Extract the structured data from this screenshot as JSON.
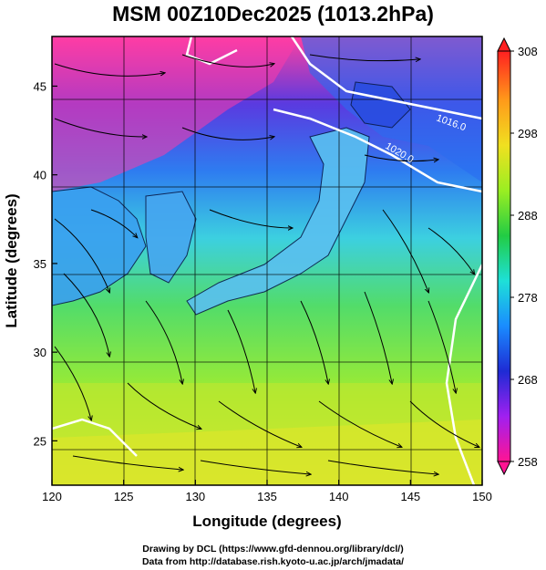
{
  "title": "MSM 00Z10Dec2025 (1013.2hPa)",
  "map": {
    "x_label": "Longitude (degrees)",
    "y_label": "Latitude  (degrees)",
    "lon_range": [
      120,
      150
    ],
    "lat_range": [
      22.5,
      47.8
    ],
    "x_ticks": [
      "120",
      "125",
      "130",
      "135",
      "140",
      "145",
      "150"
    ],
    "y_ticks": [
      "25",
      "30",
      "35",
      "40",
      "45"
    ],
    "grid": true,
    "isobar_labels": [
      "1016.0",
      "1020.0"
    ],
    "field": "temperature (K) with surface streamlines"
  },
  "colorbar": {
    "min": 258,
    "max": 308,
    "tick_labels": [
      "308",
      "298",
      "288",
      "278",
      "268",
      "258"
    ],
    "colors": [
      "#ff1493",
      "#a020f0",
      "#1e2bd4",
      "#1a8cff",
      "#1ee0d8",
      "#22cc44",
      "#9aee22",
      "#f0e020",
      "#ff9a1a",
      "#ff2020"
    ]
  },
  "credits": {
    "line1": "Drawing by DCL (https://www.gfd-dennou.org/library/dcl/)",
    "line2": "Data from http://database.rish.kyoto-u.ac.jp/arch/jmadata/"
  }
}
